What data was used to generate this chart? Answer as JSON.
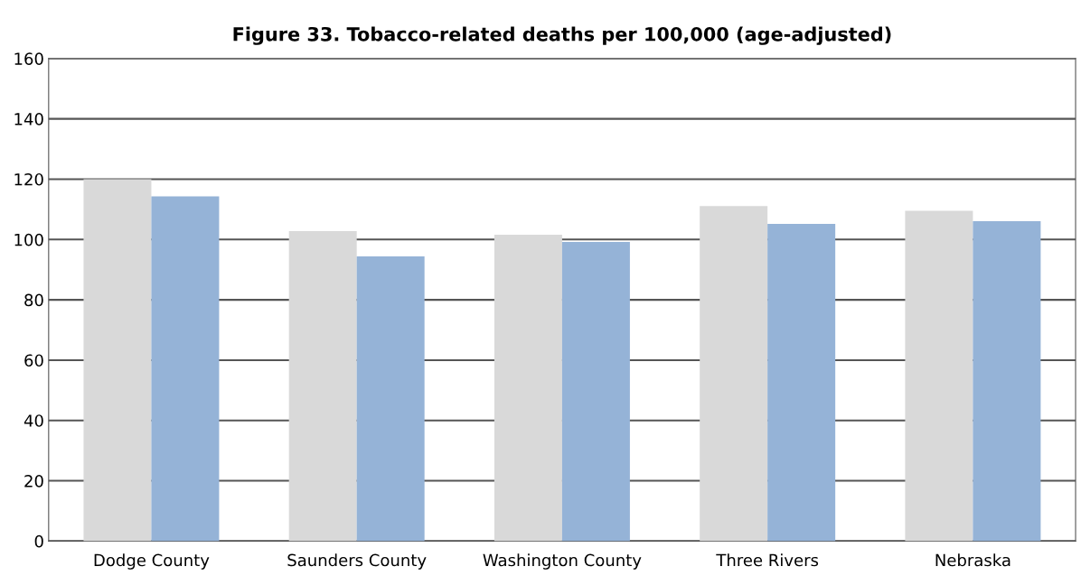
{
  "chart_data": {
    "type": "bar",
    "title": "Figure 33. Tobacco-related deaths per 100,000 (age-adjusted)",
    "categories": [
      "Dodge County",
      "Saunders County",
      "Washington County",
      "Three Rivers",
      "Nebraska"
    ],
    "series": [
      {
        "color": "#d9d9d9",
        "values": [
          120,
          102.8,
          101.6,
          111.1,
          109.5
        ]
      },
      {
        "color": "#95b3d7",
        "values": [
          114.3,
          94.4,
          99.2,
          105.2,
          106.1
        ]
      }
    ],
    "ylim": [
      0,
      160
    ],
    "yticks": [
      0,
      20,
      40,
      60,
      80,
      100,
      120,
      140,
      160
    ],
    "grid": "y"
  }
}
